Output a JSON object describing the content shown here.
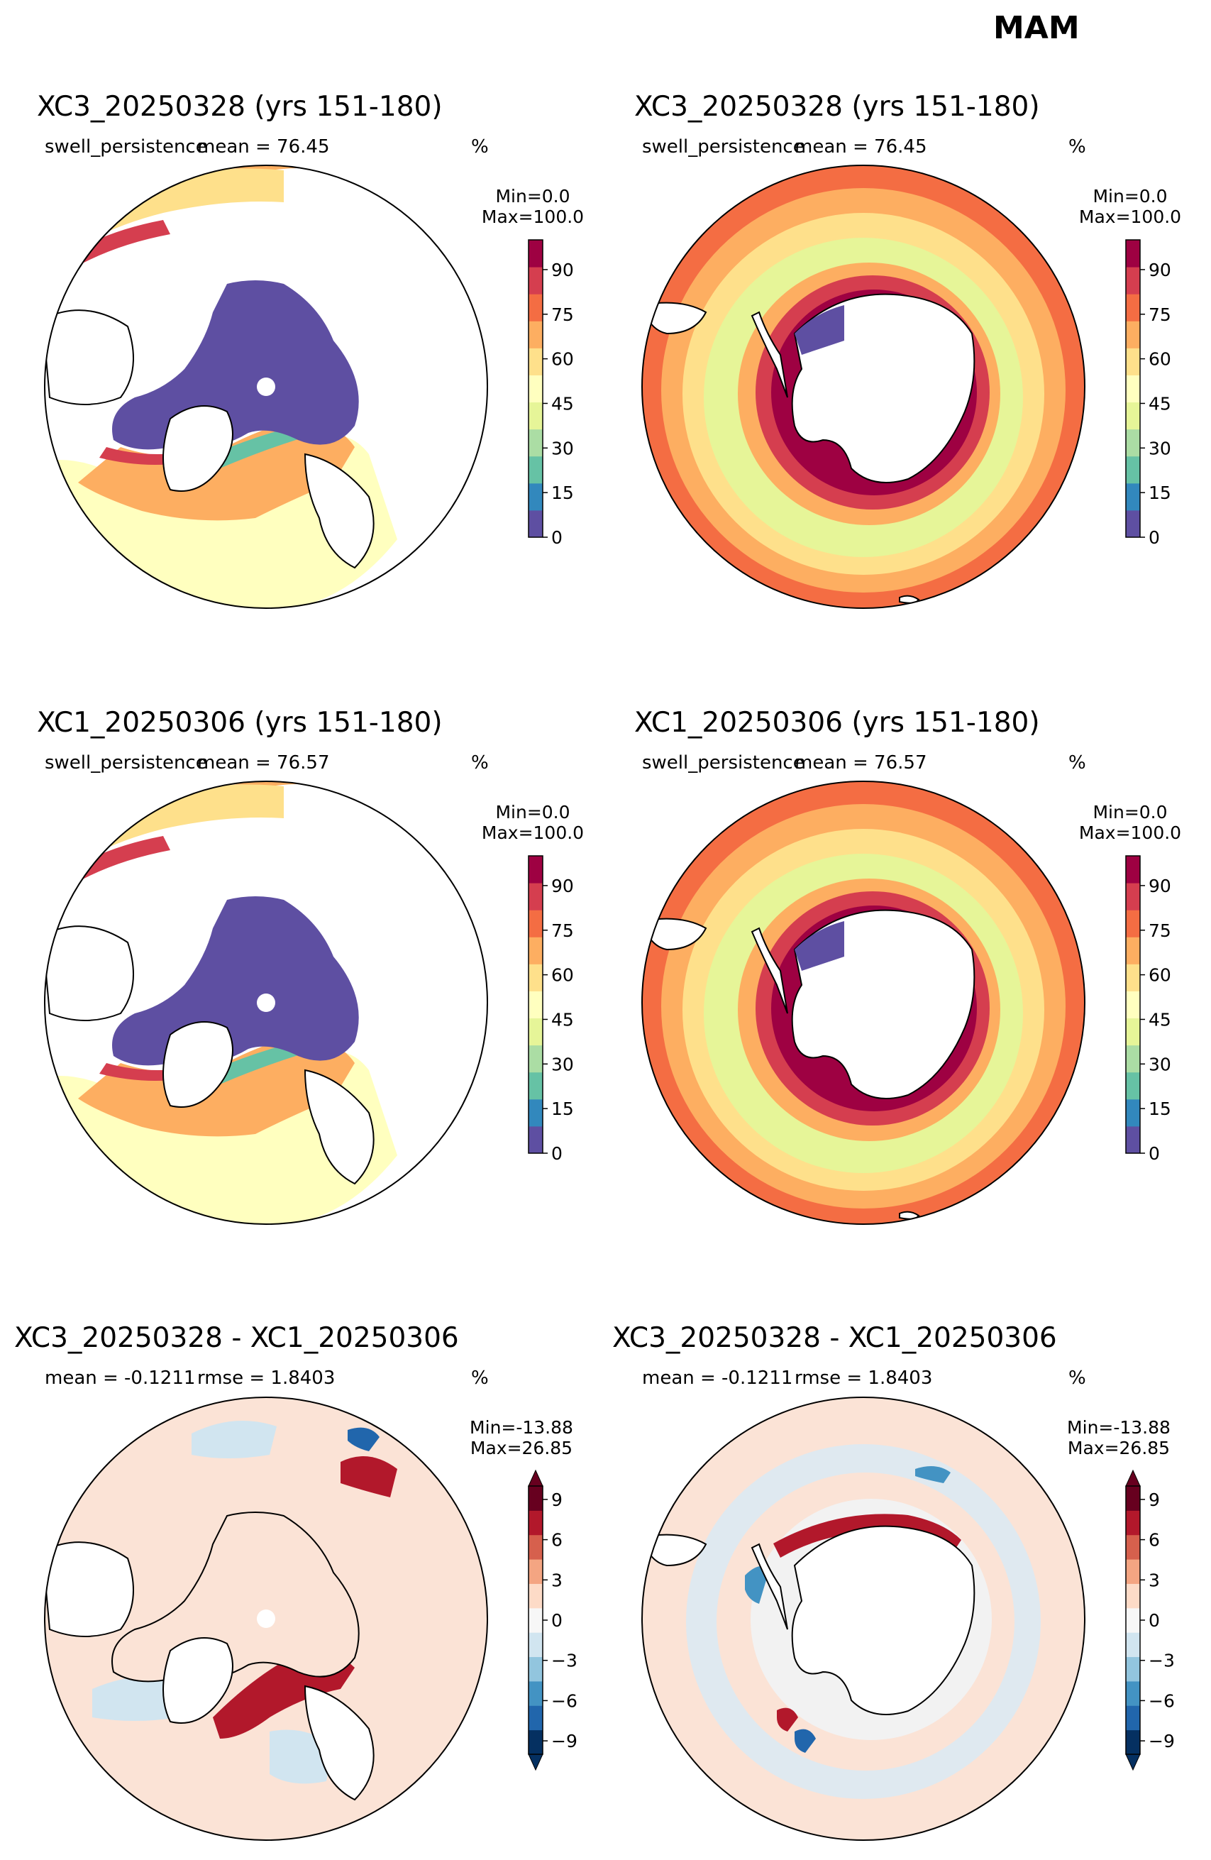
{
  "suptitle": "MAM",
  "colors": {
    "seq": [
      "#5e4fa2",
      "#3288bd",
      "#66c2a5",
      "#abdda4",
      "#e6f598",
      "#ffffbf",
      "#fee08b",
      "#fdae61",
      "#f46d43",
      "#d53e4f",
      "#9e0142"
    ],
    "div": [
      "#053061",
      "#2166ac",
      "#4393c3",
      "#92c5de",
      "#d1e5f0",
      "#f7f7f7",
      "#fddbc7",
      "#f4a582",
      "#d6604d",
      "#b2182b",
      "#67001f"
    ]
  },
  "panels": [
    {
      "title": "XC3_20250328 (yrs 151-180)",
      "left_label": "swell_persistence",
      "mid_label": "mean = 76.45",
      "units": "%",
      "min_label": "Min=0.0",
      "max_label": "Max=100.0",
      "hemisphere": "north",
      "kind": "seq"
    },
    {
      "title": "XC3_20250328 (yrs 151-180)",
      "left_label": "swell_persistence",
      "mid_label": "mean = 76.45",
      "units": "%",
      "min_label": "Min=0.0",
      "max_label": "Max=100.0",
      "hemisphere": "south",
      "kind": "seq"
    },
    {
      "title": "XC1_20250306 (yrs 151-180)",
      "left_label": "swell_persistence",
      "mid_label": "mean = 76.57",
      "units": "%",
      "min_label": "Min=0.0",
      "max_label": "Max=100.0",
      "hemisphere": "north",
      "kind": "seq"
    },
    {
      "title": "XC1_20250306 (yrs 151-180)",
      "left_label": "swell_persistence",
      "mid_label": "mean = 76.57",
      "units": "%",
      "min_label": "Min=0.0",
      "max_label": "Max=100.0",
      "hemisphere": "south",
      "kind": "seq"
    },
    {
      "title": "XC3_20250328 - XC1_20250306",
      "left_label": "mean = -0.1211",
      "mid_label": "rmse = 1.8403",
      "units": "%",
      "min_label": "Min=-13.88",
      "max_label": "Max=26.85",
      "hemisphere": "north",
      "kind": "div"
    },
    {
      "title": "XC3_20250328 - XC1_20250306",
      "left_label": "mean = -0.1211",
      "mid_label": "rmse = 1.8403",
      "units": "%",
      "min_label": "Min=-13.88",
      "max_label": "Max=26.85",
      "hemisphere": "south",
      "kind": "div"
    }
  ],
  "chart_data": {
    "type": "heatmap",
    "colorbars": [
      {
        "kind": "seq",
        "range": [
          0,
          100
        ],
        "ticks": [
          "0",
          "15",
          "30",
          "45",
          "60",
          "75",
          "90"
        ],
        "extend": "neither"
      },
      {
        "kind": "div",
        "range": [
          -10,
          10
        ],
        "ticks": [
          "−9",
          "−6",
          "−3",
          "0",
          "3",
          "6",
          "9"
        ],
        "extend": "both"
      }
    ]
  }
}
